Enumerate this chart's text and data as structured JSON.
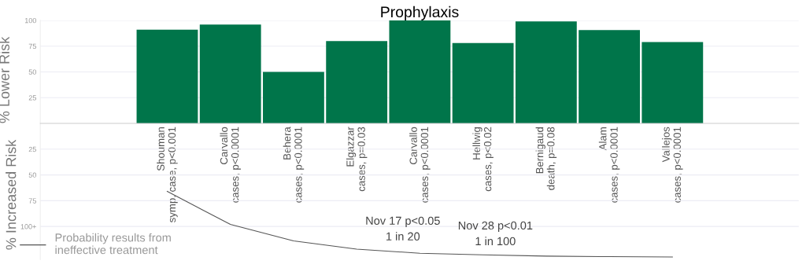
{
  "chart_data": {
    "type": "bar",
    "title": "Prophylaxis",
    "ylabel": "% Lower Risk",
    "categories": [
      "Shouman\nsymp. case, p<0.001",
      "Carvallo\ncases, p<0.0001",
      "Behera\ncases, p<0.0001",
      "Elgazzar\ncases, p=0.03",
      "Carvallo\ncases, p<0.0001",
      "Hellwig\ncases, p<0.02",
      "Bernigaud\ndeath, p=0.08",
      "Alam\ncases, p<0.0001",
      "Vallejos\ncases, p<0.0001"
    ],
    "series": [
      {
        "color": "#00754a",
        "values": [
          91,
          96,
          50,
          80,
          100,
          78,
          99,
          90.5,
          79
        ]
      },
      {
        "type": "line",
        "name": "Probability results from\nineffective treatment",
        "color": "#555555",
        "values": [
          -66,
          -98,
          -114,
          -122,
          -126,
          -127.5,
          -128.8,
          -129.3,
          -129.6
        ]
      }
    ],
    "ylim": [
      -132,
      100
    ],
    "yticks": [
      {
        "value": -100,
        "label": "100+"
      },
      {
        "value": -75,
        "label": "75"
      },
      {
        "value": -50,
        "label": "50"
      },
      {
        "value": -25,
        "label": "25"
      },
      25,
      50,
      75,
      100
    ],
    "grid": "y",
    "legend": "bottom left",
    "annotations": [
      "% Increased Risk",
      "Nov 17 p<0.05\n1 in 20",
      "Nov 28 p<0.01\n1 in 100"
    ]
  }
}
